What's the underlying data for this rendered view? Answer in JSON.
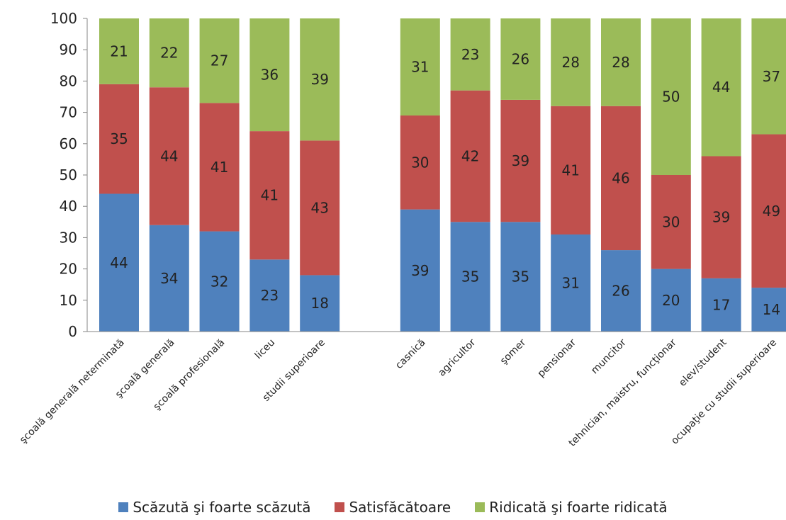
{
  "chart_data": {
    "type": "bar",
    "stacked": true,
    "ylim": [
      0,
      100
    ],
    "yticks": [
      0,
      10,
      20,
      30,
      40,
      50,
      60,
      70,
      80,
      90,
      100
    ],
    "grid": false,
    "legend_position": "bottom",
    "categories": [
      "şcoală generală neterminată",
      "şcoală generală",
      "şcoală profesională",
      "liceu",
      "studii superioare",
      "",
      "casnică",
      "agricultor",
      "şomer",
      "pensionar",
      "muncitor",
      "tehnician, maistru, funcţionar",
      "elev/student",
      "ocupaţie cu studii superioare"
    ],
    "series": [
      {
        "name": "Scăzută şi foarte scăzută",
        "color": "#4F81BD",
        "values": [
          44,
          34,
          32,
          23,
          18,
          null,
          39,
          35,
          35,
          31,
          26,
          20,
          17,
          14
        ]
      },
      {
        "name": "Satisfăcătoare",
        "color": "#C0504D",
        "values": [
          35,
          44,
          41,
          41,
          43,
          null,
          30,
          42,
          39,
          41,
          46,
          30,
          39,
          49
        ]
      },
      {
        "name": "Ridicată şi foarte ridicată",
        "color": "#9BBB59",
        "values": [
          21,
          22,
          27,
          36,
          39,
          null,
          31,
          23,
          26,
          28,
          28,
          50,
          44,
          37
        ]
      }
    ]
  }
}
